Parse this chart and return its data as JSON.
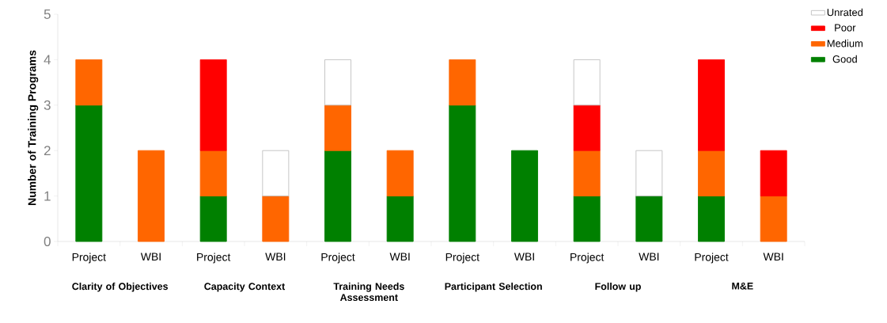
{
  "chart_data": {
    "type": "bar",
    "stacked": true,
    "ylabel": "Number of Training Programs",
    "categories": [
      "Project",
      "WBI",
      "Project",
      "WBI",
      "Project",
      "WBI",
      "Project",
      "WBI",
      "Project",
      "WBI",
      "Project",
      "WBI"
    ],
    "series": [
      {
        "name": "Good",
        "color": "#008000",
        "values": [
          3,
          0,
          1,
          0,
          2,
          1,
          3,
          2,
          1,
          1,
          1,
          0
        ]
      },
      {
        "name": "Medium",
        "color": "#ff6600",
        "values": [
          1,
          2,
          1,
          1,
          1,
          1,
          1,
          0,
          1,
          0,
          1,
          1
        ]
      },
      {
        "name": "Poor",
        "color": "#ff0000",
        "values": [
          0,
          0,
          2,
          0,
          0,
          0,
          0,
          0,
          1,
          0,
          2,
          1
        ]
      },
      {
        "name": "Unrated",
        "color": "#ffffff",
        "values": [
          0,
          0,
          0,
          1,
          1,
          0,
          0,
          0,
          1,
          1,
          0,
          0
        ]
      }
    ],
    "ylim": [
      0,
      5
    ],
    "yticks": [
      0,
      1,
      2,
      3,
      4,
      5
    ],
    "grid": false,
    "legend": "top right",
    "annotations": [
      "Clarity of Objectives",
      "Capacity Context",
      "Training Needs Assessment",
      "Participant Selection",
      "Follow up",
      "M&E"
    ]
  }
}
